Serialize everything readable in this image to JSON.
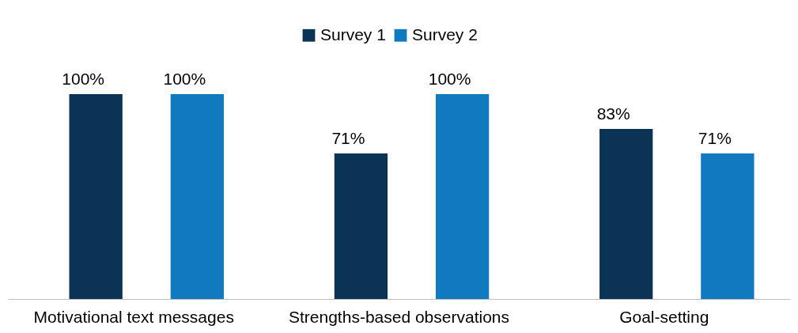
{
  "chart_data": {
    "type": "bar",
    "categories": [
      "Motivational text messages",
      "Strengths-based observations",
      "Goal-setting"
    ],
    "series": [
      {
        "name": "Survey 1",
        "color": "#0b3356",
        "values": [
          100,
          71,
          83
        ],
        "value_labels": [
          "100%",
          "71%",
          "83%"
        ]
      },
      {
        "name": "Survey 2",
        "color": "#0f7ac0",
        "values": [
          100,
          100,
          71
        ],
        "value_labels": [
          "100%",
          "100%",
          "71%"
        ]
      }
    ],
    "legend": "top",
    "grid": false,
    "tick_labels": "x"
  }
}
